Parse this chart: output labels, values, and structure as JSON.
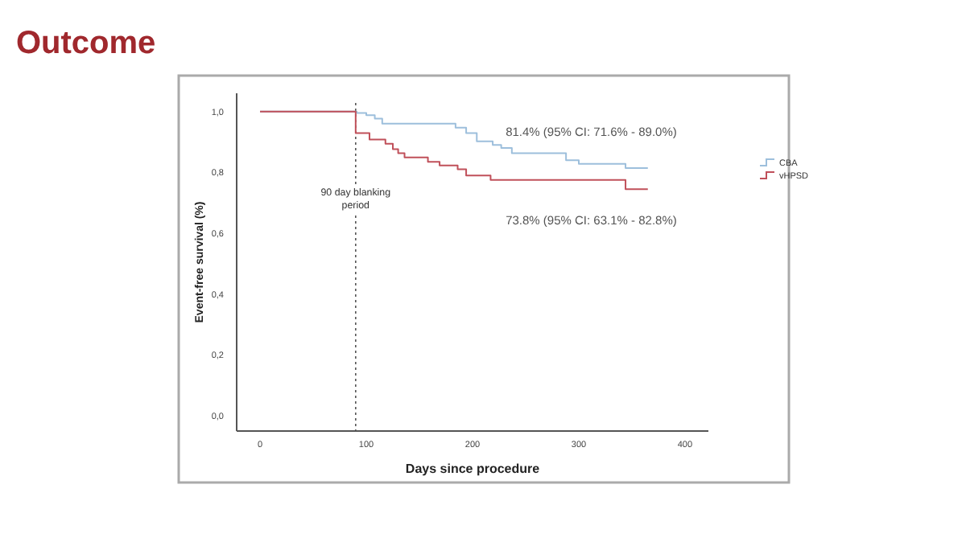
{
  "chart_data": {
    "type": "step",
    "title": "Outcome",
    "xlabel": "Days since procedure",
    "ylabel": "Event-free survival (%)",
    "xlim": [
      -22,
      422
    ],
    "ylim": [
      -0.05,
      1.06
    ],
    "xticks": [
      0,
      100,
      200,
      300,
      400
    ],
    "yticks": [
      {
        "value": 0,
        "label": "0,0"
      },
      {
        "value": 0.2,
        "label": "0,2"
      },
      {
        "value": 0.4,
        "label": "0,4"
      },
      {
        "value": 0.6,
        "label": "0,6"
      },
      {
        "value": 0.8,
        "label": "0,8"
      },
      {
        "value": 1,
        "label": "1,0"
      }
    ],
    "series": [
      {
        "name": "CBA",
        "color": "#9dbfdc",
        "x": [
          0,
          91,
          100,
          108,
          115,
          184,
          194,
          204,
          219,
          227,
          237,
          288,
          300,
          344,
          365
        ],
        "values": [
          1,
          0.995,
          0.988,
          0.977,
          0.96,
          0.947,
          0.929,
          0.902,
          0.89,
          0.88,
          0.863,
          0.84,
          0.828,
          0.814,
          0.814
        ]
      },
      {
        "name": "vHPSD",
        "color": "#c0505a",
        "x": [
          0,
          90,
          103,
          118,
          125,
          130,
          136,
          158,
          169,
          186,
          194,
          217,
          344,
          365
        ],
        "values": [
          1,
          0.929,
          0.908,
          0.894,
          0.876,
          0.863,
          0.849,
          0.835,
          0.823,
          0.81,
          0.79,
          0.775,
          0.745,
          0.745
        ]
      }
    ],
    "ref_lines": [
      {
        "axis": "x",
        "value": 90,
        "label": "90 day blanking\nperiod",
        "line_style": "dotted",
        "color": "#555555"
      }
    ],
    "annotations": [
      {
        "text": "81.4%  (95% CI: 71.6% - 89.0%)",
        "x": 365,
        "y": 0.814
      },
      {
        "text": "73.8% (95% CI: 63.1% - 82.8%)",
        "x": 365,
        "y": 0.745
      }
    ],
    "legend": "right",
    "grid": false
  }
}
